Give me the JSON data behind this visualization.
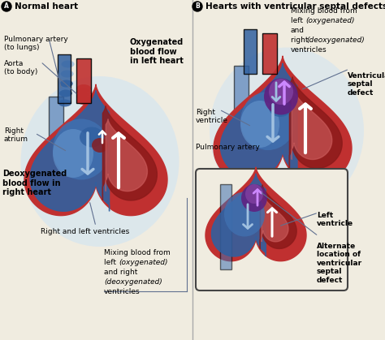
{
  "bg_color": "#f0ece0",
  "title_A": "Normal heart",
  "title_B": "Hearts with ventricular septal defects",
  "label_A": {
    "pulmonary_artery": "Pulmonary artery\n(to lungs)",
    "aorta": "Aorta\n(to body)",
    "right_atrium": "Right\natrium",
    "oxygenated": "Oxygenated\nblood flow\nin left heart",
    "deoxygenated": "Deoxygenated\nblood flow in\nright heart",
    "ventricles": "Right and left ventricles",
    "mixing_bottom": "Mixing blood from\nleft (oxygenated)\nand right\n(deoxygenated)\nventricles"
  },
  "label_B": {
    "mixing_top": "Mixing blood from\nleft (oxygenated) and\nright (deoxygenated)\nventricles",
    "ventricular_defect": "Ventricular\nseptal\ndefect",
    "right_ventricle": "Right\nventricle",
    "pulmonary_artery": "Pulmonary artery",
    "left_ventricle": "Left\nventricle",
    "alternate_location": "Alternate\nlocation of\nventricular\nseptal\ndefect"
  },
  "colors": {
    "red": "#c03030",
    "dark_red": "#8b1a1a",
    "med_red": "#b04040",
    "pink_red": "#d06060",
    "blue": "#3060a0",
    "mid_blue": "#4070b0",
    "light_blue": "#6090c8",
    "pale_blue": "#a0c0e0",
    "very_pale_blue": "#d0e4f4",
    "purple": "#8040a0",
    "dark_purple": "#602080",
    "gray_blue": "#607090",
    "white": "#ffffff",
    "gray": "#888888",
    "dark_gray": "#444444",
    "bg": "#f0ece0",
    "line_color": "#555555"
  }
}
